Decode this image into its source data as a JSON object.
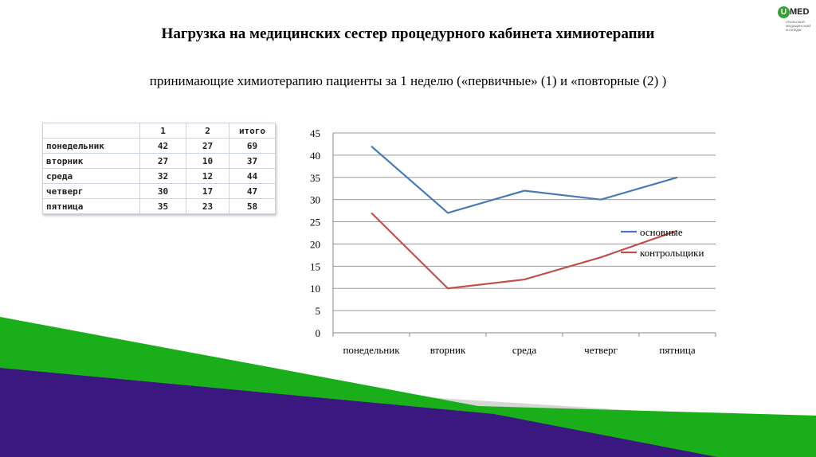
{
  "slide": {
    "title": "Нагрузка на медицинских сестер процедурного кабинета химиотерапии",
    "subtitle": "принимающие химиотерапию пациенты за 1 неделю («первичные» (1) и «повторные (2) )",
    "logo": {
      "brand": "MED",
      "mark": "U",
      "text": "УРАЛЬСКИЙ МЕДИЦИНСКИЙ КОЛЛЕДЖ"
    },
    "colors": {
      "green": "#1aae1a",
      "purple": "#3a1880",
      "gray": "#d6d6d6"
    }
  },
  "table": {
    "headers": [
      "",
      "1",
      "2",
      "итого"
    ],
    "rows": [
      [
        "понедельник",
        "42",
        "27",
        "69"
      ],
      [
        "вторник",
        "27",
        "10",
        "37"
      ],
      [
        "среда",
        "32",
        "12",
        "44"
      ],
      [
        "четверг",
        "30",
        "17",
        "47"
      ],
      [
        "пятница",
        "35",
        "23",
        "58"
      ]
    ]
  },
  "chart_data": {
    "type": "line",
    "categories": [
      "понедельник",
      "вторник",
      "среда",
      "четверг",
      "пятница"
    ],
    "series": [
      {
        "name": "основные",
        "values": [
          42,
          27,
          32,
          30,
          35
        ],
        "color": "#4a7ab5"
      },
      {
        "name": "контрольщики",
        "values": [
          27,
          10,
          12,
          17,
          23
        ],
        "color": "#c0504d"
      }
    ],
    "ylim": [
      0,
      45
    ],
    "yticks": [
      0,
      5,
      10,
      15,
      20,
      25,
      30,
      35,
      40,
      45
    ],
    "grid": true,
    "legend": "right"
  }
}
